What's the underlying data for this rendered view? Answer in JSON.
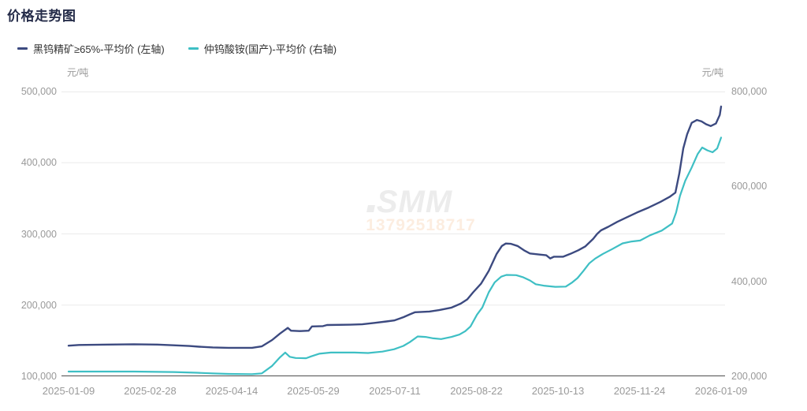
{
  "title": "价格走势图",
  "watermark": {
    "logo": "SMM",
    "number": "13792518717"
  },
  "colors": {
    "title": "#252c49",
    "legend_text": "#333333",
    "axis_label": "#999999",
    "gridline": "#eaeaea",
    "axis_line": "#4d4d4d",
    "series_navy": "#3c4a80",
    "series_cyan": "#3ebfc4"
  },
  "chart_data": {
    "type": "line",
    "title": "价格走势图",
    "grid": "horizontal",
    "legend_position": "top-left",
    "x_tick_labels": [
      "2025-01-09",
      "2025-02-28",
      "2025-04-14",
      "2025-05-29",
      "2025-07-11",
      "2025-08-22",
      "2025-10-13",
      "2025-11-24",
      "2026-01-09"
    ],
    "left_axis": {
      "unit": "元/吨",
      "min": 100000,
      "max": 500000,
      "tick_values": [
        500000,
        400000,
        300000,
        200000,
        100000
      ],
      "tick_labels": [
        "500,000",
        "400,000",
        "300,000",
        "200,000",
        "100,000"
      ]
    },
    "right_axis": {
      "unit": "元/吨",
      "min": 200000,
      "max": 800000,
      "tick_values": [
        800000,
        600000,
        400000,
        200000
      ],
      "tick_labels": [
        "800,000",
        "600,000",
        "400,000",
        "200,000"
      ]
    },
    "series": [
      {
        "name": "黑钨精矿≥65%-平均价 (左轴)",
        "axis": "left",
        "color": "#3c4a80",
        "points": [
          [
            0,
            143000
          ],
          [
            0.016,
            144000
          ],
          [
            0.06,
            144500
          ],
          [
            0.1,
            145000
          ],
          [
            0.136,
            144500
          ],
          [
            0.161,
            143500
          ],
          [
            0.185,
            142500
          ],
          [
            0.2,
            141500
          ],
          [
            0.221,
            140500
          ],
          [
            0.245,
            140000
          ],
          [
            0.281,
            140000
          ],
          [
            0.296,
            142000
          ],
          [
            0.312,
            151000
          ],
          [
            0.324,
            160000
          ],
          [
            0.336,
            168000
          ],
          [
            0.341,
            164000
          ],
          [
            0.354,
            163500
          ],
          [
            0.368,
            164000
          ],
          [
            0.373,
            170000
          ],
          [
            0.39,
            170500
          ],
          [
            0.396,
            172000
          ],
          [
            0.432,
            172500
          ],
          [
            0.45,
            173000
          ],
          [
            0.469,
            175000
          ],
          [
            0.487,
            177000
          ],
          [
            0.499,
            178500
          ],
          [
            0.513,
            183000
          ],
          [
            0.523,
            187000
          ],
          [
            0.531,
            190000
          ],
          [
            0.553,
            191000
          ],
          [
            0.568,
            193000
          ],
          [
            0.587,
            196500
          ],
          [
            0.601,
            202000
          ],
          [
            0.611,
            208000
          ],
          [
            0.62,
            218000
          ],
          [
            0.632,
            230000
          ],
          [
            0.644,
            248000
          ],
          [
            0.656,
            272000
          ],
          [
            0.664,
            283000
          ],
          [
            0.67,
            286500
          ],
          [
            0.678,
            286000
          ],
          [
            0.688,
            283000
          ],
          [
            0.698,
            277000
          ],
          [
            0.707,
            272500
          ],
          [
            0.722,
            271000
          ],
          [
            0.732,
            270000
          ],
          [
            0.738,
            265500
          ],
          [
            0.744,
            268000
          ],
          [
            0.758,
            268000
          ],
          [
            0.769,
            272000
          ],
          [
            0.781,
            277000
          ],
          [
            0.792,
            282500
          ],
          [
            0.804,
            293000
          ],
          [
            0.81,
            300000
          ],
          [
            0.816,
            305000
          ],
          [
            0.827,
            310000
          ],
          [
            0.841,
            317000
          ],
          [
            0.855,
            323000
          ],
          [
            0.871,
            330000
          ],
          [
            0.889,
            337000
          ],
          [
            0.907,
            345000
          ],
          [
            0.921,
            352000
          ],
          [
            0.93,
            358000
          ],
          [
            0.936,
            385000
          ],
          [
            0.942,
            420000
          ],
          [
            0.948,
            440000
          ],
          [
            0.955,
            456000
          ],
          [
            0.963,
            460000
          ],
          [
            0.97,
            458000
          ],
          [
            0.977,
            454000
          ],
          [
            0.984,
            451500
          ],
          [
            0.992,
            455000
          ],
          [
            0.998,
            467000
          ],
          [
            1,
            479000
          ]
        ]
      },
      {
        "name": "仲钨酸铵(国产)-平均价 (右轴)",
        "axis": "right",
        "color": "#3ebfc4",
        "points": [
          [
            0,
            210000
          ],
          [
            0.04,
            210000
          ],
          [
            0.1,
            210000
          ],
          [
            0.161,
            209000
          ],
          [
            0.197,
            207500
          ],
          [
            0.221,
            206000
          ],
          [
            0.245,
            205000
          ],
          [
            0.281,
            204500
          ],
          [
            0.296,
            206000
          ],
          [
            0.312,
            222000
          ],
          [
            0.324,
            240000
          ],
          [
            0.332,
            250000
          ],
          [
            0.339,
            241000
          ],
          [
            0.348,
            238500
          ],
          [
            0.364,
            238000
          ],
          [
            0.372,
            242000
          ],
          [
            0.384,
            247500
          ],
          [
            0.402,
            250000
          ],
          [
            0.438,
            250000
          ],
          [
            0.459,
            249000
          ],
          [
            0.481,
            252000
          ],
          [
            0.499,
            257000
          ],
          [
            0.513,
            264000
          ],
          [
            0.523,
            272000
          ],
          [
            0.535,
            284000
          ],
          [
            0.547,
            283000
          ],
          [
            0.559,
            280000
          ],
          [
            0.571,
            278500
          ],
          [
            0.587,
            283000
          ],
          [
            0.599,
            288000
          ],
          [
            0.608,
            295000
          ],
          [
            0.616,
            305000
          ],
          [
            0.626,
            330000
          ],
          [
            0.634,
            345000
          ],
          [
            0.644,
            377000
          ],
          [
            0.653,
            398000
          ],
          [
            0.663,
            410000
          ],
          [
            0.671,
            413500
          ],
          [
            0.686,
            413000
          ],
          [
            0.696,
            409000
          ],
          [
            0.707,
            402000
          ],
          [
            0.716,
            394000
          ],
          [
            0.728,
            391000
          ],
          [
            0.746,
            388500
          ],
          [
            0.762,
            389000
          ],
          [
            0.772,
            398000
          ],
          [
            0.78,
            407000
          ],
          [
            0.789,
            422000
          ],
          [
            0.798,
            438000
          ],
          [
            0.807,
            448000
          ],
          [
            0.819,
            458000
          ],
          [
            0.833,
            468000
          ],
          [
            0.849,
            480000
          ],
          [
            0.863,
            484000
          ],
          [
            0.876,
            486000
          ],
          [
            0.891,
            497000
          ],
          [
            0.909,
            507000
          ],
          [
            0.925,
            522000
          ],
          [
            0.931,
            545000
          ],
          [
            0.937,
            580000
          ],
          [
            0.945,
            612000
          ],
          [
            0.955,
            640000
          ],
          [
            0.964,
            668000
          ],
          [
            0.971,
            682000
          ],
          [
            0.979,
            676000
          ],
          [
            0.987,
            672000
          ],
          [
            0.994,
            680000
          ],
          [
            1,
            703000
          ]
        ]
      }
    ]
  }
}
